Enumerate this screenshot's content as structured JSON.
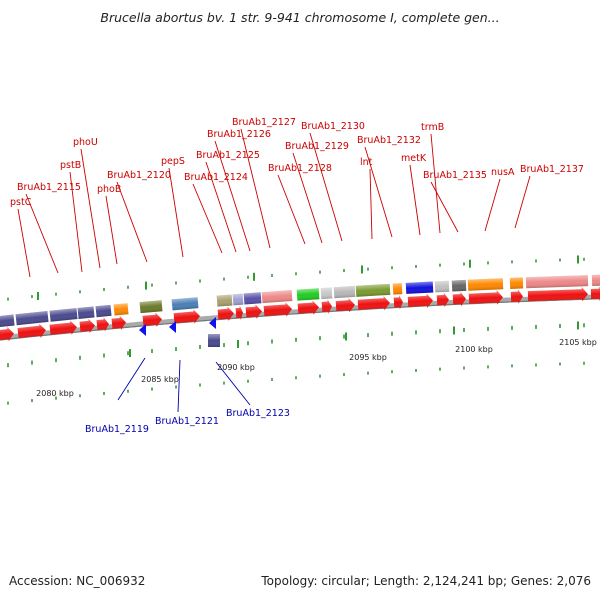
{
  "title": "Brucella abortus bv. 1 str. 9-941 chromosome I, complete gen...",
  "footer": {
    "accession": "Accession: NC_006932",
    "summary": "Topology: circular; Length: 2,124,241 bp; Genes: 2,076"
  },
  "colors": {
    "forward_label": "#cc0000",
    "reverse_label": "#0000aa",
    "cds_forward": "#ee1111",
    "cds_reverse": "#1111ee",
    "backbone": "#888888",
    "tick": "#339933"
  },
  "ticks": [
    "2080 kbp",
    "2085 kbp",
    "2090 kbp",
    "2095 kbp",
    "2100 kbp",
    "2105 kbp"
  ],
  "forward_labels": [
    "pstC",
    "BruAb1_2115",
    "pstB",
    "phoU",
    "phoB",
    "BruAb1_2120",
    "pepS",
    "BruAb1_2124",
    "BruAb1_2125",
    "BruAb1_2126",
    "BruAb1_2127",
    "BruAb1_2128",
    "BruAb1_2129",
    "BruAb1_2130",
    "lnt",
    "BruAb1_2132",
    "metK",
    "trmB",
    "BruAb1_2135",
    "nusA",
    "BruAb1_2137"
  ],
  "reverse_labels": [
    "BruAb1_2119",
    "BruAb1_2121",
    "BruAb1_2123"
  ]
}
